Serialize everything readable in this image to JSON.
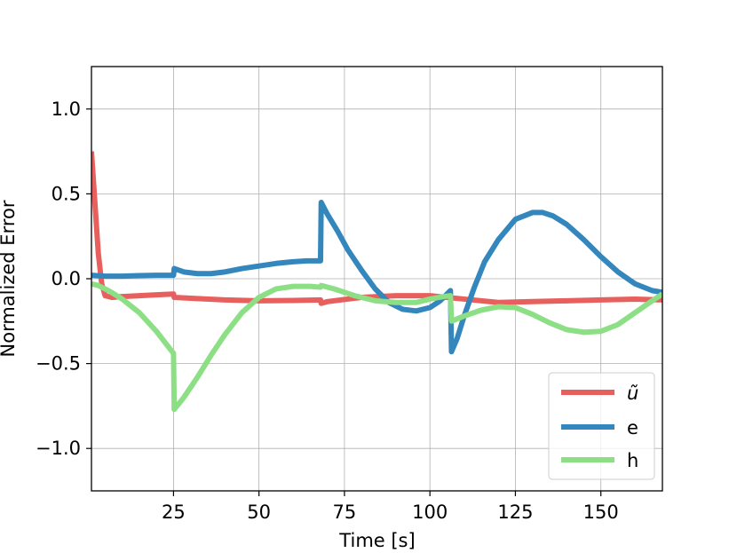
{
  "chart_data": {
    "type": "line",
    "xlabel": "Time [s]",
    "ylabel": "Normalized Error",
    "xlim": [
      1,
      168
    ],
    "ylim": [
      -1.25,
      1.25
    ],
    "xticks": [
      25,
      50,
      75,
      100,
      125,
      150
    ],
    "xtick_labels": [
      "25",
      "50",
      "75",
      "100",
      "125",
      "150"
    ],
    "yticks": [
      -1.0,
      -0.5,
      0.0,
      0.5,
      1.0
    ],
    "ytick_labels": [
      "−1.0",
      "−0.5",
      "0.0",
      "0.5",
      "1.0"
    ],
    "grid": true,
    "legend_position": "bottom-right",
    "series": [
      {
        "name": "ũ",
        "color": "#e8605e",
        "x": [
          1,
          2,
          3,
          4,
          5,
          7,
          10,
          15,
          20,
          25,
          25.2,
          30,
          40,
          50,
          60,
          68,
          68.2,
          70,
          80,
          90,
          100,
          110,
          120,
          130,
          140,
          150,
          160,
          168
        ],
        "y": [
          0.75,
          0.45,
          0.15,
          -0.03,
          -0.1,
          -0.11,
          -0.105,
          -0.1,
          -0.095,
          -0.09,
          -0.11,
          -0.115,
          -0.125,
          -0.13,
          -0.128,
          -0.125,
          -0.145,
          -0.135,
          -0.11,
          -0.1,
          -0.1,
          -0.12,
          -0.14,
          -0.135,
          -0.13,
          -0.125,
          -0.12,
          -0.125
        ]
      },
      {
        "name": "e",
        "color": "#3387bc",
        "x": [
          1,
          5,
          10,
          15,
          20,
          25,
          25.2,
          28,
          32,
          36,
          40,
          45,
          50,
          55,
          60,
          64,
          68,
          68.2,
          70,
          73,
          76,
          80,
          84,
          88,
          92,
          96,
          100,
          103,
          106,
          106.3,
          108,
          110,
          113,
          116,
          120,
          125,
          130,
          133,
          136,
          140,
          145,
          150,
          155,
          160,
          165,
          168
        ],
        "y": [
          0.02,
          0.015,
          0.015,
          0.018,
          0.02,
          0.02,
          0.06,
          0.04,
          0.03,
          0.03,
          0.04,
          0.06,
          0.075,
          0.09,
          0.1,
          0.105,
          0.105,
          0.45,
          0.38,
          0.28,
          0.17,
          0.05,
          -0.06,
          -0.14,
          -0.18,
          -0.19,
          -0.17,
          -0.13,
          -0.07,
          -0.43,
          -0.35,
          -0.22,
          -0.05,
          0.1,
          0.23,
          0.35,
          0.39,
          0.39,
          0.37,
          0.32,
          0.23,
          0.13,
          0.04,
          -0.03,
          -0.07,
          -0.08
        ]
      },
      {
        "name": "h",
        "color": "#8ddf85",
        "x": [
          1,
          3,
          6,
          10,
          15,
          20,
          25,
          25.2,
          28,
          32,
          36,
          40,
          45,
          50,
          55,
          60,
          65,
          68,
          68.2,
          72,
          78,
          84,
          90,
          96,
          100,
          104,
          106,
          106.3,
          110,
          115,
          120,
          125,
          130,
          135,
          140,
          145,
          150,
          155,
          160,
          165,
          168
        ],
        "y": [
          -0.03,
          -0.04,
          -0.07,
          -0.12,
          -0.2,
          -0.31,
          -0.44,
          -0.77,
          -0.7,
          -0.58,
          -0.45,
          -0.33,
          -0.2,
          -0.11,
          -0.06,
          -0.045,
          -0.045,
          -0.05,
          -0.04,
          -0.06,
          -0.1,
          -0.13,
          -0.14,
          -0.14,
          -0.12,
          -0.105,
          -0.1,
          -0.25,
          -0.22,
          -0.185,
          -0.165,
          -0.17,
          -0.21,
          -0.26,
          -0.3,
          -0.315,
          -0.31,
          -0.27,
          -0.2,
          -0.13,
          -0.09
        ]
      }
    ]
  }
}
